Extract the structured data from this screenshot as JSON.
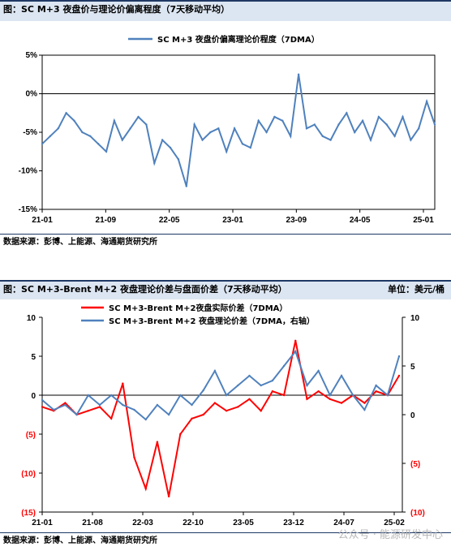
{
  "chart1": {
    "title": "图：SC M+3 夜盘价与理论价偏离程度（7天移动平均）",
    "source": "数据来源：彭博、上能源、海通期货研究所"
  },
  "chart2": {
    "title": "图：SC M+3-Brent M+2 夜盘理论价差与盘面价差（7天移动平均）",
    "unit": "单位：美元/桶",
    "source": "数据来源：彭博、上能源、海通期货研究所"
  },
  "watermark": "公众号 · 能源研发中心",
  "colors": {
    "blue": "#4f81bd",
    "red": "#ff0000",
    "header_bg": "#dce6f2"
  },
  "chart_data": [
    {
      "type": "line",
      "title": "",
      "legend_position": "top",
      "ylim": [
        -15,
        5
      ],
      "y_ticks": [
        "5%",
        "0%",
        "-5%",
        "-10%",
        "-15%"
      ],
      "x_ticks": [
        "21-01",
        "21-09",
        "22-05",
        "23-01",
        "23-09",
        "24-05",
        "25-01"
      ],
      "series": [
        {
          "name": "SC M+3 夜盘价偏离理论价程度（7DMA）",
          "color": "#4f81bd",
          "x": [
            "21-01",
            "21-02",
            "21-03",
            "21-04",
            "21-05",
            "21-06",
            "21-07",
            "21-08",
            "21-09",
            "21-10",
            "21-11",
            "21-12",
            "22-01",
            "22-02",
            "22-03",
            "22-04",
            "22-05",
            "22-06",
            "22-07",
            "22-08",
            "22-09",
            "22-10",
            "22-11",
            "22-12",
            "23-01",
            "23-02",
            "23-03",
            "23-04",
            "23-05",
            "23-06",
            "23-07",
            "23-08",
            "23-09",
            "23-10",
            "23-11",
            "23-12",
            "24-01",
            "24-02",
            "24-03",
            "24-04",
            "24-05",
            "24-06",
            "24-07",
            "24-08",
            "24-09",
            "24-10",
            "24-11",
            "24-12",
            "25-01",
            "25-02"
          ],
          "values": [
            -6.5,
            -5.5,
            -4.5,
            -2.5,
            -3.5,
            -5.0,
            -5.5,
            -6.5,
            -7.5,
            -3.5,
            -6.0,
            -4.5,
            -3.0,
            -4.0,
            -9.0,
            -6.0,
            -7.0,
            -8.5,
            -12.0,
            -4.0,
            -6.0,
            -5.0,
            -4.5,
            -7.5,
            -4.5,
            -6.5,
            -7.0,
            -3.5,
            -5.0,
            -3.0,
            -3.5,
            -5.5,
            2.5,
            -4.5,
            -4.0,
            -5.5,
            -6.0,
            -4.0,
            -2.5,
            -5.0,
            -3.5,
            -6.0,
            -3.0,
            -4.0,
            -5.5,
            -3.0,
            -6.0,
            -4.5,
            -1.0,
            -4.0
          ]
        }
      ]
    },
    {
      "type": "line",
      "title": "",
      "legend_position": "top",
      "ylim_left": [
        -15,
        10
      ],
      "ylim_right": [
        -10,
        10
      ],
      "y_ticks_left": [
        "10",
        "5",
        "0",
        "(5)",
        "(10)",
        "(15)"
      ],
      "y_ticks_right": [
        "10",
        "5",
        "0",
        "(5)",
        "(10)"
      ],
      "x_ticks": [
        "21-01",
        "21-08",
        "22-03",
        "22-10",
        "23-05",
        "23-12",
        "24-07",
        "25-02"
      ],
      "series": [
        {
          "name": "SC M+3-Brent M+2夜盘实际价差（7DMA）",
          "axis": "left",
          "color": "#ff0000",
          "x": [
            "21-01",
            "21-03",
            "21-05",
            "21-07",
            "21-09",
            "21-11",
            "22-01",
            "22-02",
            "22-03",
            "22-04",
            "22-05",
            "22-06",
            "22-07",
            "22-08",
            "22-09",
            "22-10",
            "22-12",
            "23-02",
            "23-04",
            "23-06",
            "23-08",
            "23-10",
            "23-11",
            "23-12",
            "24-02",
            "24-04",
            "24-06",
            "24-08",
            "24-10",
            "24-12",
            "25-01",
            "25-02"
          ],
          "values": [
            -1.5,
            -2.0,
            -1.0,
            -2.5,
            -2.0,
            -1.5,
            -3.0,
            1.5,
            -8.0,
            -12.0,
            -6.0,
            -13.0,
            -5.0,
            -3.0,
            -2.5,
            -1.0,
            -2.0,
            -1.5,
            -0.5,
            -2.0,
            0.5,
            0.0,
            7.0,
            -0.5,
            0.5,
            -0.5,
            -1.0,
            0.0,
            -1.0,
            0.5,
            0.0,
            2.5
          ]
        },
        {
          "name": "SC M+3-Brent M+2 夜盘理论价差（7DMA，右轴）",
          "axis": "right",
          "color": "#4f81bd",
          "x": [
            "21-01",
            "21-03",
            "21-05",
            "21-07",
            "21-09",
            "21-11",
            "22-01",
            "22-02",
            "22-03",
            "22-04",
            "22-05",
            "22-06",
            "22-07",
            "22-08",
            "22-09",
            "22-10",
            "22-12",
            "23-02",
            "23-04",
            "23-06",
            "23-08",
            "23-10",
            "23-11",
            "23-12",
            "24-02",
            "24-04",
            "24-06",
            "24-08",
            "24-10",
            "24-12",
            "25-01",
            "25-02"
          ],
          "values": [
            1.5,
            0.5,
            1.0,
            0.0,
            2.0,
            1.0,
            2.0,
            1.0,
            0.5,
            -0.5,
            1.0,
            0.0,
            2.0,
            1.0,
            2.5,
            4.5,
            2.0,
            3.0,
            4.0,
            3.0,
            3.5,
            5.0,
            6.5,
            3.0,
            4.5,
            2.0,
            4.0,
            2.0,
            0.5,
            3.0,
            2.0,
            6.0
          ]
        }
      ]
    }
  ]
}
